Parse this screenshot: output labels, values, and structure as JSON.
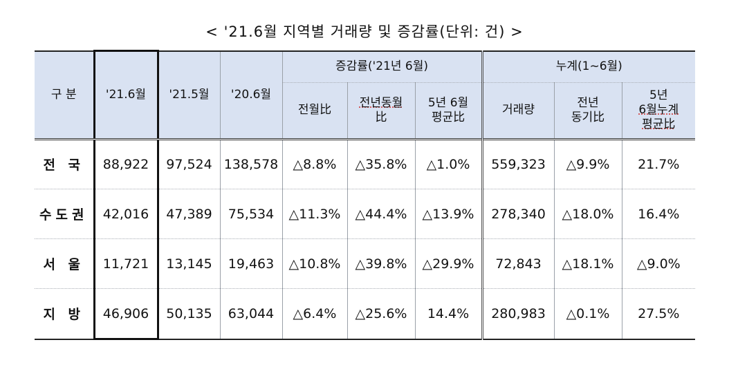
{
  "title": "< '21.6월 지역별 거래량 및 증감률(단위: 건) >",
  "header": {
    "category": "구 분",
    "col_2106": "'21.6월",
    "col_2105": "'21.5월",
    "col_2006": "'20.6월",
    "change_group": "증감률('21년 6월)",
    "mom": "전월比",
    "yoy_line1": "전년동월",
    "yoy_line2": "比",
    "avg5_line1": "5년 6월",
    "avg5_line2": "평균比",
    "cum_group": "누계(1~6월)",
    "cum_volume": "거래량",
    "cum_yoy_line1": "전년",
    "cum_yoy_line2": "동기比",
    "cum_avg_line1": "5년",
    "cum_avg_line2": "6월누계",
    "cum_avg_line3": "평균比"
  },
  "rows": [
    {
      "region": "전 국",
      "v2106": "88,922",
      "v2105": "97,524",
      "v2006": "138,578",
      "mom": "△8.8%",
      "yoy": "△35.8%",
      "avg5": "△1.0%",
      "cum": "559,323",
      "cum_yoy": "△9.9%",
      "cum_avg": "21.7%"
    },
    {
      "region": "수도권",
      "v2106": "42,016",
      "v2105": "47,389",
      "v2006": "75,534",
      "mom": "△11.3%",
      "yoy": "△44.4%",
      "avg5": "△13.9%",
      "cum": "278,340",
      "cum_yoy": "△18.0%",
      "cum_avg": "16.4%"
    },
    {
      "region": "서 울",
      "v2106": "11,721",
      "v2105": "13,145",
      "v2006": "19,463",
      "mom": "△10.8%",
      "yoy": "△39.8%",
      "avg5": "△29.9%",
      "cum": "72,843",
      "cum_yoy": "△18.1%",
      "cum_avg": "△9.0%"
    },
    {
      "region": "지 방",
      "v2106": "46,906",
      "v2105": "50,135",
      "v2006": "63,044",
      "mom": "△6.4%",
      "yoy": "△25.6%",
      "avg5": "14.4%",
      "cum": "280,983",
      "cum_yoy": "△0.1%",
      "cum_avg": "27.5%"
    }
  ]
}
